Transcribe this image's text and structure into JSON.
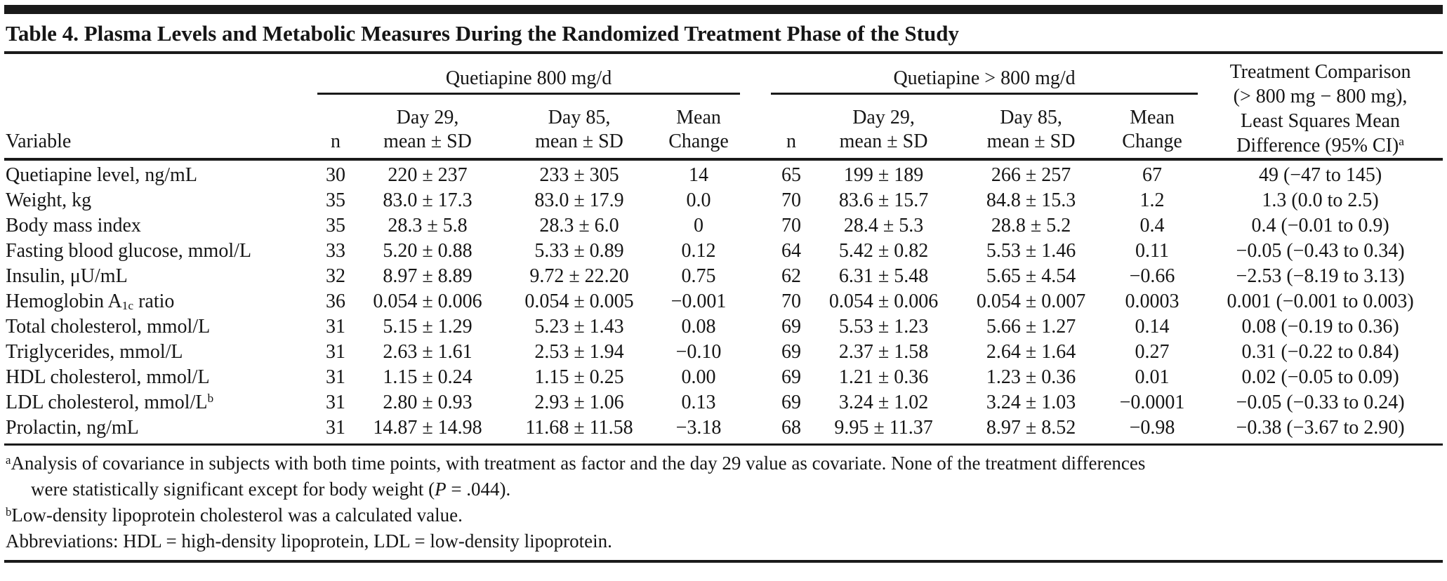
{
  "page": {
    "title": "Table 4. Plasma Levels and Metabolic Measures During the Randomized Treatment Phase of the Study"
  },
  "table": {
    "column_groups": {
      "group1_label": "Quetiapine 800 mg/d",
      "group2_label": "Quetiapine > 800 mg/d",
      "comparison_label": "Treatment Comparison\n(> 800 mg − 800 mg),\nLeast Squares Mean\nDifference (95% CI)^a^"
    },
    "headers": {
      "variable": "Variable",
      "n": "n",
      "day29": "Day 29,\nmean ± SD",
      "day85": "Day 85,\nmean ± SD",
      "mean_change": "Mean\nChange"
    },
    "rows": [
      [
        "Quetiapine level, ng/mL",
        "30",
        "220 ± 237",
        "233 ± 305",
        "14",
        "65",
        "199 ± 189",
        "266 ± 257",
        "67",
        "49 (−47 to 145)"
      ],
      [
        "Weight, kg",
        "35",
        "83.0 ± 17.3",
        "83.0 ± 17.9",
        "0.0",
        "70",
        "83.6 ± 15.7",
        "84.8 ± 15.3",
        "1.2",
        "1.3 (0.0 to 2.5)"
      ],
      [
        "Body mass index",
        "35",
        "28.3 ± 5.8",
        "28.3 ± 6.0",
        "0",
        "70",
        "28.4 ± 5.3",
        "28.8 ± 5.2",
        "0.4",
        "0.4 (−0.01 to 0.9)"
      ],
      [
        "Fasting blood glucose, mmol/L",
        "33",
        "5.20 ± 0.88",
        "5.33 ± 0.89",
        "0.12",
        "64",
        "5.42 ± 0.82",
        "5.53 ± 1.46",
        "0.11",
        "−0.05 (−0.43 to 0.34)"
      ],
      [
        "Insulin, μU/mL",
        "32",
        "8.97 ± 8.89",
        "9.72 ± 22.20",
        "0.75",
        "62",
        "6.31 ± 5.48",
        "5.65 ± 4.54",
        "−0.66",
        "−2.53 (−8.19 to 3.13)"
      ],
      [
        "Hemoglobin A~1c~ ratio",
        "36",
        "0.054 ± 0.006",
        "0.054 ± 0.005",
        "−0.001",
        "70",
        "0.054 ± 0.006",
        "0.054 ± 0.007",
        "0.0003",
        "0.001 (−0.001 to 0.003)"
      ],
      [
        "Total cholesterol, mmol/L",
        "31",
        "5.15 ± 1.29",
        "5.23 ± 1.43",
        "0.08",
        "69",
        "5.53 ± 1.23",
        "5.66 ± 1.27",
        "0.14",
        "0.08 (−0.19 to 0.36)"
      ],
      [
        "Triglycerides, mmol/L",
        "31",
        "2.63 ± 1.61",
        "2.53 ± 1.94",
        "−0.10",
        "69",
        "2.37 ± 1.58",
        "2.64 ± 1.64",
        "0.27",
        "0.31 (−0.22 to 0.84)"
      ],
      [
        "HDL cholesterol, mmol/L",
        "31",
        "1.15 ± 0.24",
        "1.15 ± 0.25",
        "0.00",
        "69",
        "1.21 ± 0.36",
        "1.23 ± 0.36",
        "0.01",
        "0.02 (−0.05 to 0.09)"
      ],
      [
        "LDL cholesterol, mmol/L^b^",
        "31",
        "2.80 ± 0.93",
        "2.93 ± 1.06",
        "0.13",
        "69",
        "3.24 ± 1.02",
        "3.24 ± 1.03",
        "−0.0001",
        "−0.05 (−0.33 to 0.24)"
      ],
      [
        "Prolactin, ng/mL",
        "31",
        "14.87 ± 14.98",
        "11.68 ± 11.58",
        "−3.18",
        "68",
        "9.95 ± 11.37",
        "8.97 ± 8.52",
        "−0.98",
        "−0.38 (−3.67 to 2.90)"
      ]
    ]
  },
  "footnotes": [
    "^a^Analysis of covariance in subjects with both time points, with treatment as factor and the day 29 value as covariate. None of the treatment differences\nwere statistically significant except for body weight (*P* = .044).",
    "^b^Low-density lipoprotein cholesterol was a calculated value.",
    "Abbreviations: HDL = high-density lipoprotein, LDL = low-density lipoprotein."
  ]
}
